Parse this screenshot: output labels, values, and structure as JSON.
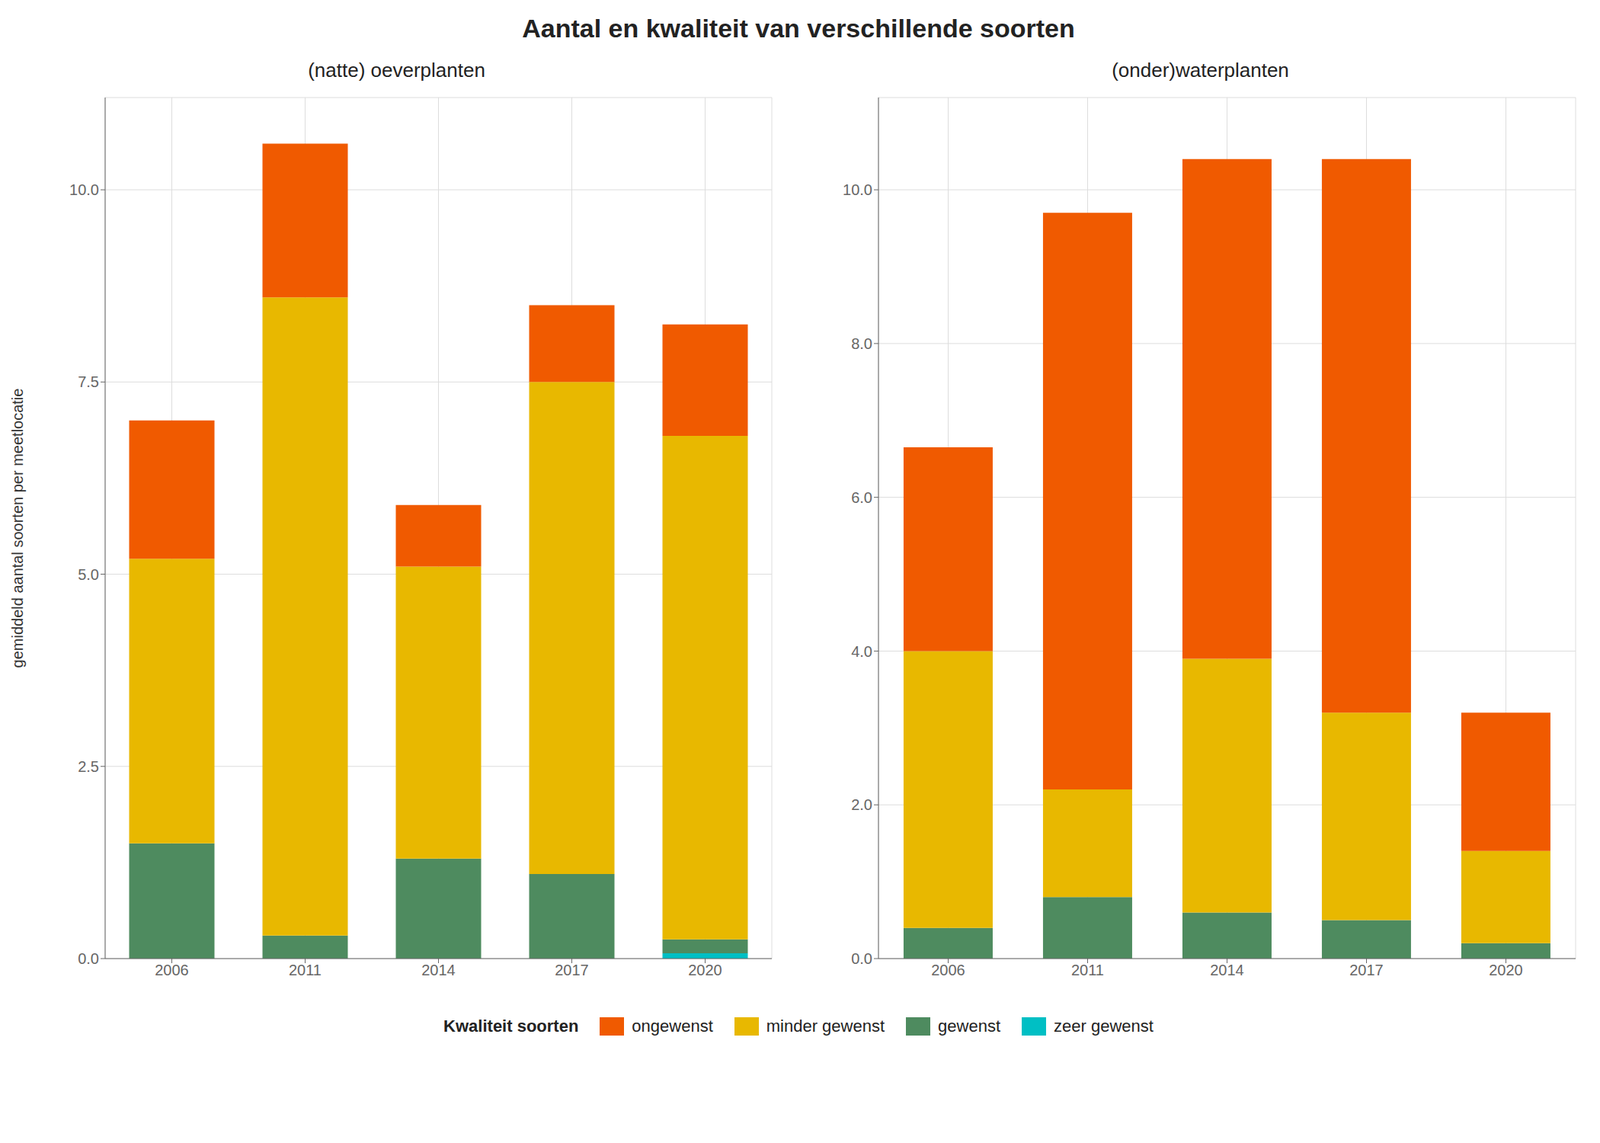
{
  "title": "Aantal en kwaliteit van verschillende soorten",
  "legend": "bottom",
  "legend_title": "Kwaliteit soorten",
  "chart_data": [
    {
      "type": "bar",
      "stacked": true,
      "title": "(natte) oeverplanten",
      "y_label": "gemiddeld aantal soorten per meetlocatie",
      "categories": [
        "2006",
        "2011",
        "2014",
        "2017",
        "2020"
      ],
      "series": [
        {
          "name": "zeer gewenst",
          "color": "#00BFC4",
          "values": [
            0.0,
            0.0,
            0.0,
            0.0,
            0.07
          ]
        },
        {
          "name": "gewenst",
          "color": "#4E8B5F",
          "values": [
            1.5,
            0.3,
            1.3,
            1.1,
            0.18
          ]
        },
        {
          "name": "minder gewenst",
          "color": "#E8B800",
          "values": [
            3.7,
            8.3,
            3.8,
            6.4,
            6.55
          ]
        },
        {
          "name": "ongewenst",
          "color": "#F05A00",
          "values": [
            1.8,
            2.0,
            0.8,
            1.0,
            1.45
          ]
        }
      ],
      "ylim": [
        0,
        11.2
      ],
      "yticks": [
        {
          "value": 0,
          "label": "0.0"
        },
        2.5,
        {
          "value": 5,
          "label": "5.0"
        },
        7.5,
        {
          "value": 10,
          "label": "10.0"
        }
      ],
      "grid": true
    },
    {
      "type": "bar",
      "stacked": true,
      "title": "(onder)waterplanten",
      "categories": [
        "2006",
        "2011",
        "2014",
        "2017",
        "2020"
      ],
      "series": [
        {
          "name": "zeer gewenst",
          "color": "#00BFC4",
          "values": [
            0.0,
            0.0,
            0.0,
            0.0,
            0.0
          ]
        },
        {
          "name": "gewenst",
          "color": "#4E8B5F",
          "values": [
            0.4,
            0.8,
            0.6,
            0.5,
            0.2
          ]
        },
        {
          "name": "minder gewenst",
          "color": "#E8B800",
          "values": [
            3.6,
            1.4,
            3.3,
            2.7,
            1.2
          ]
        },
        {
          "name": "ongewenst",
          "color": "#F05A00",
          "values": [
            2.65,
            7.5,
            6.5,
            7.2,
            1.8
          ]
        }
      ],
      "ylim": [
        0,
        11.2
      ],
      "yticks": [
        {
          "value": 0,
          "label": "0.0"
        },
        {
          "value": 2,
          "label": "2.0"
        },
        {
          "value": 4,
          "label": "4.0"
        },
        {
          "value": 6,
          "label": "6.0"
        },
        {
          "value": 8,
          "label": "8.0"
        },
        {
          "value": 10,
          "label": "10.0"
        }
      ],
      "grid": true
    }
  ]
}
